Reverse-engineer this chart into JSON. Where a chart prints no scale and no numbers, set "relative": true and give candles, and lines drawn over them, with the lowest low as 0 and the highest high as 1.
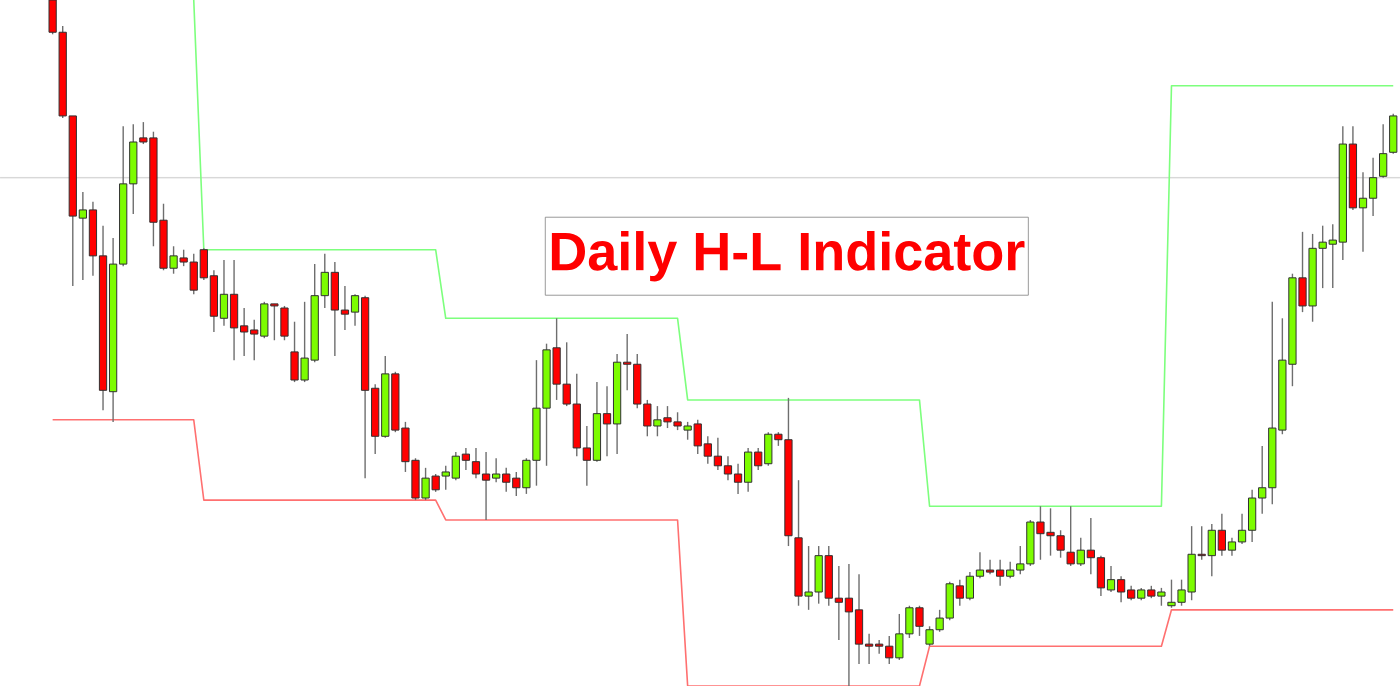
{
  "chart_data": {
    "type": "candlestick",
    "relative": true,
    "title": "Daily H-L Indicator",
    "categories": [
      null,
      null,
      null,
      null,
      null,
      null,
      null,
      null,
      null,
      null,
      null,
      null,
      null,
      null,
      null,
      null,
      null,
      null,
      null,
      null,
      null,
      null,
      null,
      null,
      null,
      null,
      null,
      null,
      null,
      null,
      null,
      null,
      null,
      null,
      null,
      null,
      null,
      null,
      null,
      null,
      null,
      null,
      null,
      null,
      null,
      null,
      null,
      null,
      null,
      null,
      null,
      null,
      null,
      null,
      null,
      null,
      null,
      null,
      null,
      null,
      null,
      null,
      null,
      null,
      null,
      null,
      null,
      null,
      null,
      null,
      null,
      null,
      null,
      null,
      null,
      null,
      null,
      null,
      null,
      null,
      null,
      null,
      null,
      null,
      null,
      null,
      null,
      null,
      null,
      null,
      null,
      null,
      null,
      null,
      null,
      null,
      null,
      null,
      null,
      null,
      null,
      null,
      null,
      null,
      null,
      null,
      null,
      null,
      null,
      null,
      null,
      null,
      null,
      null,
      null,
      null,
      null,
      null,
      null,
      null,
      null,
      null,
      null,
      null,
      null,
      null,
      null,
      null,
      null,
      null,
      null,
      null,
      null,
      null
    ],
    "colors": [
      "#ff0000",
      "#ff0000",
      "#ff0000",
      "#7cfc00",
      "#ff0000",
      "#ff0000",
      "#7cfc00",
      "#7cfc00",
      "#7cfc00",
      "#ff0000",
      "#ff0000",
      "#ff0000",
      "#7cfc00",
      "#ff0000",
      "#ff0000",
      "#ff0000",
      "#ff0000",
      "#7cfc00",
      "#ff0000",
      "#ff0000",
      "#ff0000",
      "#7cfc00",
      "#ff0000",
      "#ff0000",
      "#ff0000",
      "#7cfc00",
      "#7cfc00",
      "#7cfc00",
      "#ff0000",
      "#ff0000",
      "#7cfc00",
      "#ff0000",
      "#ff0000",
      "#7cfc00",
      "#ff0000",
      "#ff0000",
      "#ff0000",
      "#7cfc00",
      "#ff0000",
      "#7cfc00",
      "#7cfc00",
      "#ff0000",
      "#ff0000",
      "#ff0000",
      "#7cfc00",
      "#ff0000",
      "#ff0000",
      "#7cfc00",
      "#7cfc00",
      "#7cfc00",
      "#ff0000",
      "#ff0000",
      "#ff0000",
      "#ff0000",
      "#7cfc00",
      "#ff0000",
      "#7cfc00",
      "#ff0000",
      "#ff0000",
      "#ff0000",
      "#7cfc00",
      "#ff0000",
      "#ff0000",
      "#7cfc00",
      "#ff0000",
      "#ff0000",
      "#ff0000",
      "#ff0000",
      "#ff0000",
      "#7cfc00",
      "#ff0000",
      "#7cfc00",
      "#ff0000",
      "#ff0000",
      "#ff0000",
      "#7cfc00",
      "#7cfc00",
      "#ff0000",
      "#ff0000",
      "#ff0000",
      "#ff0000",
      "#ff0000",
      "#ff0000",
      "#ff0000",
      "#7cfc00",
      "#7cfc00",
      "#ff0000",
      "#7cfc00",
      "#7cfc00",
      "#7cfc00",
      "#ff0000",
      "#7cfc00",
      "#7cfc00",
      "#ff0000",
      "#ff0000",
      "#7cfc00",
      "#7cfc00",
      "#7cfc00",
      "#ff0000",
      "#ff0000",
      "#ff0000",
      "#ff0000",
      "#7cfc00",
      "#ff0000",
      "#ff0000",
      "#7cfc00",
      "#ff0000",
      "#ff0000",
      "#7cfc00",
      "#ff0000",
      "#7cfc00",
      "#7cfc00",
      "#7cfc00",
      "#7cfc00",
      "#ff0000",
      "#7cfc00",
      "#ff0000",
      "#7cfc00",
      "#7cfc00",
      "#7cfc00",
      "#7cfc00",
      "#7cfc00",
      "#7cfc00",
      "#7cfc00",
      "#ff0000",
      "#7cfc00",
      "#7cfc00",
      "#7cfc00",
      "#7cfc00",
      "#ff0000",
      "#7cfc00",
      "#7cfc00",
      "#7cfc00",
      "#7cfc00"
    ],
    "ohlc": [
      [
        1.0,
        1.0,
        0.95,
        0.953
      ],
      [
        0.953,
        0.962,
        0.828,
        0.831
      ],
      [
        0.831,
        0.831,
        0.583,
        0.685
      ],
      [
        0.682,
        0.72,
        0.592,
        0.694
      ],
      [
        0.694,
        0.706,
        0.598,
        0.627
      ],
      [
        0.627,
        0.671,
        0.402,
        0.431
      ],
      [
        0.429,
        0.653,
        0.385,
        0.615
      ],
      [
        0.615,
        0.816,
        0.612,
        0.732
      ],
      [
        0.732,
        0.819,
        0.688,
        0.793
      ],
      [
        0.799,
        0.822,
        0.79,
        0.793
      ],
      [
        0.799,
        0.808,
        0.641,
        0.676
      ],
      [
        0.679,
        0.703,
        0.606,
        0.609
      ],
      [
        0.609,
        0.641,
        0.601,
        0.627
      ],
      [
        0.624,
        0.636,
        0.612,
        0.618
      ],
      [
        0.618,
        0.63,
        0.571,
        0.577
      ],
      [
        0.636,
        0.638,
        0.592,
        0.595
      ],
      [
        0.598,
        0.606,
        0.516,
        0.539
      ],
      [
        0.536,
        0.621,
        0.525,
        0.571
      ],
      [
        0.571,
        0.621,
        0.475,
        0.522
      ],
      [
        0.525,
        0.551,
        0.481,
        0.516
      ],
      [
        0.519,
        0.534,
        0.475,
        0.513
      ],
      [
        0.51,
        0.56,
        0.507,
        0.557
      ],
      [
        0.557,
        0.557,
        0.504,
        0.554
      ],
      [
        0.551,
        0.554,
        0.504,
        0.51
      ],
      [
        0.487,
        0.531,
        0.443,
        0.446
      ],
      [
        0.446,
        0.56,
        0.443,
        0.478
      ],
      [
        0.475,
        0.615,
        0.472,
        0.569
      ],
      [
        0.569,
        0.63,
        0.551,
        0.603
      ],
      [
        0.603,
        0.618,
        0.481,
        0.548
      ],
      [
        0.548,
        0.583,
        0.519,
        0.542
      ],
      [
        0.545,
        0.571,
        0.525,
        0.569
      ],
      [
        0.566,
        0.569,
        0.303,
        0.431
      ],
      [
        0.434,
        0.44,
        0.338,
        0.364
      ],
      [
        0.364,
        0.481,
        0.362,
        0.455
      ],
      [
        0.455,
        0.458,
        0.37,
        0.373
      ],
      [
        0.376,
        0.385,
        0.312,
        0.327
      ],
      [
        0.329,
        0.332,
        0.271,
        0.274
      ],
      [
        0.274,
        0.318,
        0.271,
        0.303
      ],
      [
        0.306,
        0.309,
        0.283,
        0.286
      ],
      [
        0.306,
        0.321,
        0.286,
        0.312
      ],
      [
        0.303,
        0.341,
        0.3,
        0.335
      ],
      [
        0.338,
        0.347,
        0.315,
        0.329
      ],
      [
        0.327,
        0.347,
        0.303,
        0.309
      ],
      [
        0.309,
        0.341,
        0.242,
        0.3
      ],
      [
        0.303,
        0.332,
        0.297,
        0.309
      ],
      [
        0.309,
        0.318,
        0.283,
        0.297
      ],
      [
        0.303,
        0.312,
        0.277,
        0.289
      ],
      [
        0.289,
        0.332,
        0.28,
        0.329
      ],
      [
        0.329,
        0.475,
        0.292,
        0.405
      ],
      [
        0.405,
        0.499,
        0.321,
        0.49
      ],
      [
        0.493,
        0.536,
        0.417,
        0.44
      ],
      [
        0.44,
        0.501,
        0.408,
        0.411
      ],
      [
        0.411,
        0.455,
        0.335,
        0.347
      ],
      [
        0.347,
        0.379,
        0.292,
        0.329
      ],
      [
        0.329,
        0.443,
        0.327,
        0.397
      ],
      [
        0.397,
        0.437,
        0.335,
        0.382
      ],
      [
        0.382,
        0.484,
        0.338,
        0.472
      ],
      [
        0.472,
        0.513,
        0.431,
        0.469
      ],
      [
        0.469,
        0.484,
        0.405,
        0.411
      ],
      [
        0.411,
        0.417,
        0.364,
        0.379
      ],
      [
        0.379,
        0.408,
        0.364,
        0.388
      ],
      [
        0.391,
        0.408,
        0.376,
        0.385
      ],
      [
        0.385,
        0.399,
        0.373,
        0.379
      ],
      [
        0.373,
        0.385,
        0.359,
        0.379
      ],
      [
        0.382,
        0.388,
        0.338,
        0.35
      ],
      [
        0.353,
        0.364,
        0.324,
        0.335
      ],
      [
        0.335,
        0.362,
        0.315,
        0.321
      ],
      [
        0.321,
        0.335,
        0.3,
        0.309
      ],
      [
        0.309,
        0.324,
        0.28,
        0.297
      ],
      [
        0.297,
        0.347,
        0.283,
        0.341
      ],
      [
        0.341,
        0.347,
        0.315,
        0.321
      ],
      [
        0.324,
        0.37,
        0.321,
        0.367
      ],
      [
        0.367,
        0.37,
        0.35,
        0.359
      ],
      [
        0.359,
        0.42,
        0.204,
        0.219
      ],
      [
        0.216,
        0.3,
        0.117,
        0.131
      ],
      [
        0.131,
        0.204,
        0.111,
        0.137
      ],
      [
        0.137,
        0.204,
        0.12,
        0.19
      ],
      [
        0.19,
        0.204,
        0.117,
        0.128
      ],
      [
        0.128,
        0.175,
        0.067,
        0.122
      ],
      [
        0.128,
        0.178,
        0.0,
        0.108
      ],
      [
        0.111,
        0.163,
        0.032,
        0.061
      ],
      [
        0.061,
        0.076,
        0.032,
        0.058
      ],
      [
        0.061,
        0.067,
        0.047,
        0.058
      ],
      [
        0.058,
        0.073,
        0.032,
        0.041
      ],
      [
        0.041,
        0.105,
        0.038,
        0.076
      ],
      [
        0.076,
        0.117,
        0.07,
        0.114
      ],
      [
        0.114,
        0.117,
        0.073,
        0.087
      ],
      [
        0.061,
        0.087,
        0.058,
        0.082
      ],
      [
        0.082,
        0.111,
        0.079,
        0.099
      ],
      [
        0.099,
        0.152,
        0.096,
        0.149
      ],
      [
        0.146,
        0.155,
        0.117,
        0.128
      ],
      [
        0.128,
        0.166,
        0.125,
        0.16
      ],
      [
        0.16,
        0.195,
        0.157,
        0.169
      ],
      [
        0.169,
        0.184,
        0.163,
        0.166
      ],
      [
        0.169,
        0.184,
        0.146,
        0.16
      ],
      [
        0.16,
        0.181,
        0.157,
        0.169
      ],
      [
        0.169,
        0.204,
        0.163,
        0.178
      ],
      [
        0.178,
        0.242,
        0.175,
        0.239
      ],
      [
        0.239,
        0.262,
        0.184,
        0.222
      ],
      [
        0.224,
        0.259,
        0.19,
        0.219
      ],
      [
        0.219,
        0.227,
        0.187,
        0.198
      ],
      [
        0.195,
        0.262,
        0.175,
        0.178
      ],
      [
        0.178,
        0.216,
        0.175,
        0.198
      ],
      [
        0.198,
        0.245,
        0.163,
        0.187
      ],
      [
        0.187,
        0.19,
        0.131,
        0.143
      ],
      [
        0.14,
        0.175,
        0.137,
        0.155
      ],
      [
        0.155,
        0.16,
        0.122,
        0.137
      ],
      [
        0.14,
        0.146,
        0.125,
        0.128
      ],
      [
        0.128,
        0.143,
        0.125,
        0.14
      ],
      [
        0.14,
        0.146,
        0.128,
        0.131
      ],
      [
        0.131,
        0.143,
        0.117,
        0.137
      ],
      [
        0.117,
        0.155,
        0.114,
        0.122
      ],
      [
        0.122,
        0.155,
        0.117,
        0.14
      ],
      [
        0.137,
        0.233,
        0.125,
        0.192
      ],
      [
        0.192,
        0.233,
        0.184,
        0.19
      ],
      [
        0.19,
        0.236,
        0.16,
        0.227
      ],
      [
        0.227,
        0.251,
        0.19,
        0.198
      ],
      [
        0.198,
        0.216,
        0.19,
        0.21
      ],
      [
        0.21,
        0.251,
        0.207,
        0.227
      ],
      [
        0.227,
        0.286,
        0.21,
        0.274
      ],
      [
        0.274,
        0.35,
        0.251,
        0.289
      ],
      [
        0.289,
        0.56,
        0.265,
        0.376
      ],
      [
        0.373,
        0.536,
        0.367,
        0.475
      ],
      [
        0.469,
        0.601,
        0.437,
        0.595
      ],
      [
        0.595,
        0.662,
        0.545,
        0.554
      ],
      [
        0.554,
        0.659,
        0.531,
        0.638
      ],
      [
        0.638,
        0.671,
        0.58,
        0.647
      ],
      [
        0.644,
        0.673,
        0.58,
        0.65
      ],
      [
        0.647,
        0.816,
        0.621,
        0.79
      ],
      [
        0.79,
        0.816,
        0.694,
        0.697
      ],
      [
        0.697,
        0.749,
        0.633,
        0.711
      ],
      [
        0.711,
        0.77,
        0.685,
        0.741
      ],
      [
        0.743,
        0.819,
        0.741,
        0.776
      ],
      [
        0.778,
        0.834,
        0.776,
        0.831
      ]
    ],
    "series": [
      {
        "type": "line",
        "color": "#7dff7d",
        "values": [
          null,
          null,
          null,
          null,
          null,
          null,
          null,
          null,
          null,
          null,
          null,
          null,
          null,
          null,
          1.0,
          0.636,
          0.636,
          0.636,
          0.636,
          0.636,
          0.636,
          0.636,
          0.636,
          0.636,
          0.636,
          0.636,
          0.636,
          0.636,
          0.636,
          0.636,
          0.636,
          0.636,
          0.636,
          0.636,
          0.636,
          0.636,
          0.636,
          0.636,
          0.636,
          0.536,
          0.536,
          0.536,
          0.536,
          0.536,
          0.536,
          0.536,
          0.536,
          0.536,
          0.536,
          0.536,
          0.536,
          0.536,
          0.536,
          0.536,
          0.536,
          0.536,
          0.536,
          0.536,
          0.536,
          0.536,
          0.536,
          0.536,
          0.536,
          0.417,
          0.417,
          0.417,
          0.417,
          0.417,
          0.417,
          0.417,
          0.417,
          0.417,
          0.417,
          0.417,
          0.417,
          0.417,
          0.417,
          0.417,
          0.417,
          0.417,
          0.417,
          0.417,
          0.417,
          0.417,
          0.417,
          0.417,
          0.417,
          0.262,
          0.262,
          0.262,
          0.262,
          0.262,
          0.262,
          0.262,
          0.262,
          0.262,
          0.262,
          0.262,
          0.262,
          0.262,
          0.262,
          0.262,
          0.262,
          0.262,
          0.262,
          0.262,
          0.262,
          0.262,
          0.262,
          0.262,
          0.262,
          0.875,
          0.875,
          0.875,
          0.875,
          0.875,
          0.875,
          0.875,
          0.875,
          0.875,
          0.875,
          0.875,
          0.875,
          0.875,
          0.875,
          0.875,
          0.875,
          0.875,
          0.875,
          0.875,
          0.875,
          0.875,
          0.875,
          0.875
        ]
      },
      {
        "type": "line",
        "color": "#ff7070",
        "values": [
          0.388,
          0.388,
          0.388,
          0.388,
          0.388,
          0.388,
          0.388,
          0.388,
          0.388,
          0.388,
          0.388,
          0.388,
          0.388,
          0.388,
          0.388,
          0.271,
          0.271,
          0.271,
          0.271,
          0.271,
          0.271,
          0.271,
          0.271,
          0.271,
          0.271,
          0.271,
          0.271,
          0.271,
          0.271,
          0.271,
          0.271,
          0.271,
          0.271,
          0.271,
          0.271,
          0.271,
          0.271,
          0.271,
          0.271,
          0.242,
          0.242,
          0.242,
          0.242,
          0.242,
          0.242,
          0.242,
          0.242,
          0.242,
          0.242,
          0.242,
          0.242,
          0.242,
          0.242,
          0.242,
          0.242,
          0.242,
          0.242,
          0.242,
          0.242,
          0.242,
          0.242,
          0.242,
          0.242,
          0.0,
          0.0,
          0.0,
          0.0,
          0.0,
          0.0,
          0.0,
          0.0,
          0.0,
          0.0,
          0.0,
          0.0,
          0.0,
          0.0,
          0.0,
          0.0,
          0.0,
          0.0,
          0.0,
          0.0,
          0.0,
          0.0,
          0.0,
          0.0,
          0.058,
          0.058,
          0.058,
          0.058,
          0.058,
          0.058,
          0.058,
          0.058,
          0.058,
          0.058,
          0.058,
          0.058,
          0.058,
          0.058,
          0.058,
          0.058,
          0.058,
          0.058,
          0.058,
          0.058,
          0.058,
          0.058,
          0.058,
          0.058,
          0.111,
          0.111,
          0.111,
          0.111,
          0.111,
          0.111,
          0.111,
          0.111,
          0.111,
          0.111,
          0.111,
          0.111,
          0.111,
          0.111,
          0.111,
          0.111,
          0.111,
          0.111,
          0.111,
          0.111,
          0.111,
          0.111,
          0.111
        ]
      }
    ],
    "ref_lines": [
      {
        "axis": "y",
        "value": 0.741,
        "color": "#d8d8d8"
      }
    ]
  }
}
